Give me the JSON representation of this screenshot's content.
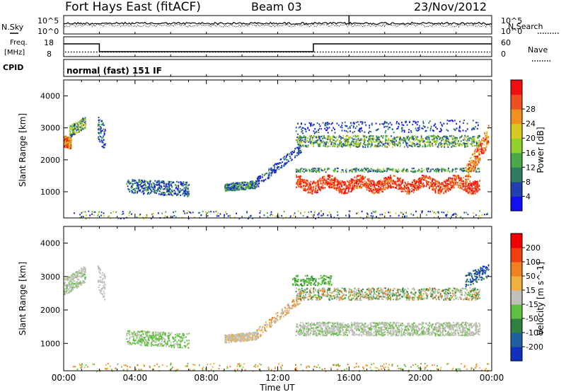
{
  "header": {
    "station": "Fort Hays East (fitACF)",
    "beam": "Beam 03",
    "date": "23/Nov/2012"
  },
  "top_panels": {
    "nsky_label": "N.Sky",
    "nsearch_label": "N.Search",
    "noise_tick_high": "10^5",
    "noise_tick_low": "10^0",
    "freq_label_1": "Freq.",
    "freq_label_2": "[MHz]",
    "freq_ticks": [
      "18",
      "8"
    ],
    "nave_label": "Nave",
    "nave_ticks": [
      "60",
      "0"
    ],
    "cpid_label": "CPID",
    "cpid_text": "normal (fast) 151 IF"
  },
  "chart_data": [
    {
      "type": "heatmap",
      "name": "power",
      "ylabel": "Slant Range [km]",
      "xlabel": "",
      "x_ticks": [
        "00:00",
        "04:00",
        "08:00",
        "12:00",
        "16:00",
        "20:00",
        "00:00"
      ],
      "x_range_hours": [
        0,
        24
      ],
      "ylim": [
        180,
        4500
      ],
      "y_ticks": [
        1000,
        2000,
        3000,
        4000
      ],
      "colorbar": {
        "label": "Power [dB]",
        "ticks": [
          "4",
          "8",
          "12",
          "16",
          "20",
          "24",
          "28"
        ],
        "colors": [
          "#1010f0",
          "#2040b0",
          "#2e7d60",
          "#4aa84a",
          "#8fd02a",
          "#d8c820",
          "#f09020",
          "#f05020",
          "#f01010"
        ]
      }
    },
    {
      "type": "heatmap",
      "name": "velocity",
      "ylabel": "Slant Range [km]",
      "xlabel": "Time UT",
      "x_ticks": [
        "00:00",
        "04:00",
        "08:00",
        "12:00",
        "16:00",
        "20:00",
        "00:00"
      ],
      "x_range_hours": [
        0,
        24
      ],
      "ylim": [
        180,
        4500
      ],
      "y_ticks": [
        1000,
        2000,
        3000,
        4000
      ],
      "colorbar": {
        "label": "Velocity [m s^-1]",
        "ticks": [
          "200",
          "100",
          "50",
          "15",
          "-15",
          "-50",
          "-100",
          "-200"
        ],
        "colors": [
          "#1030c0",
          "#2060a0",
          "#308040",
          "#60c040",
          "#c0c0b8",
          "#f0b040",
          "#f08020",
          "#f04010",
          "#f00000"
        ]
      }
    }
  ]
}
